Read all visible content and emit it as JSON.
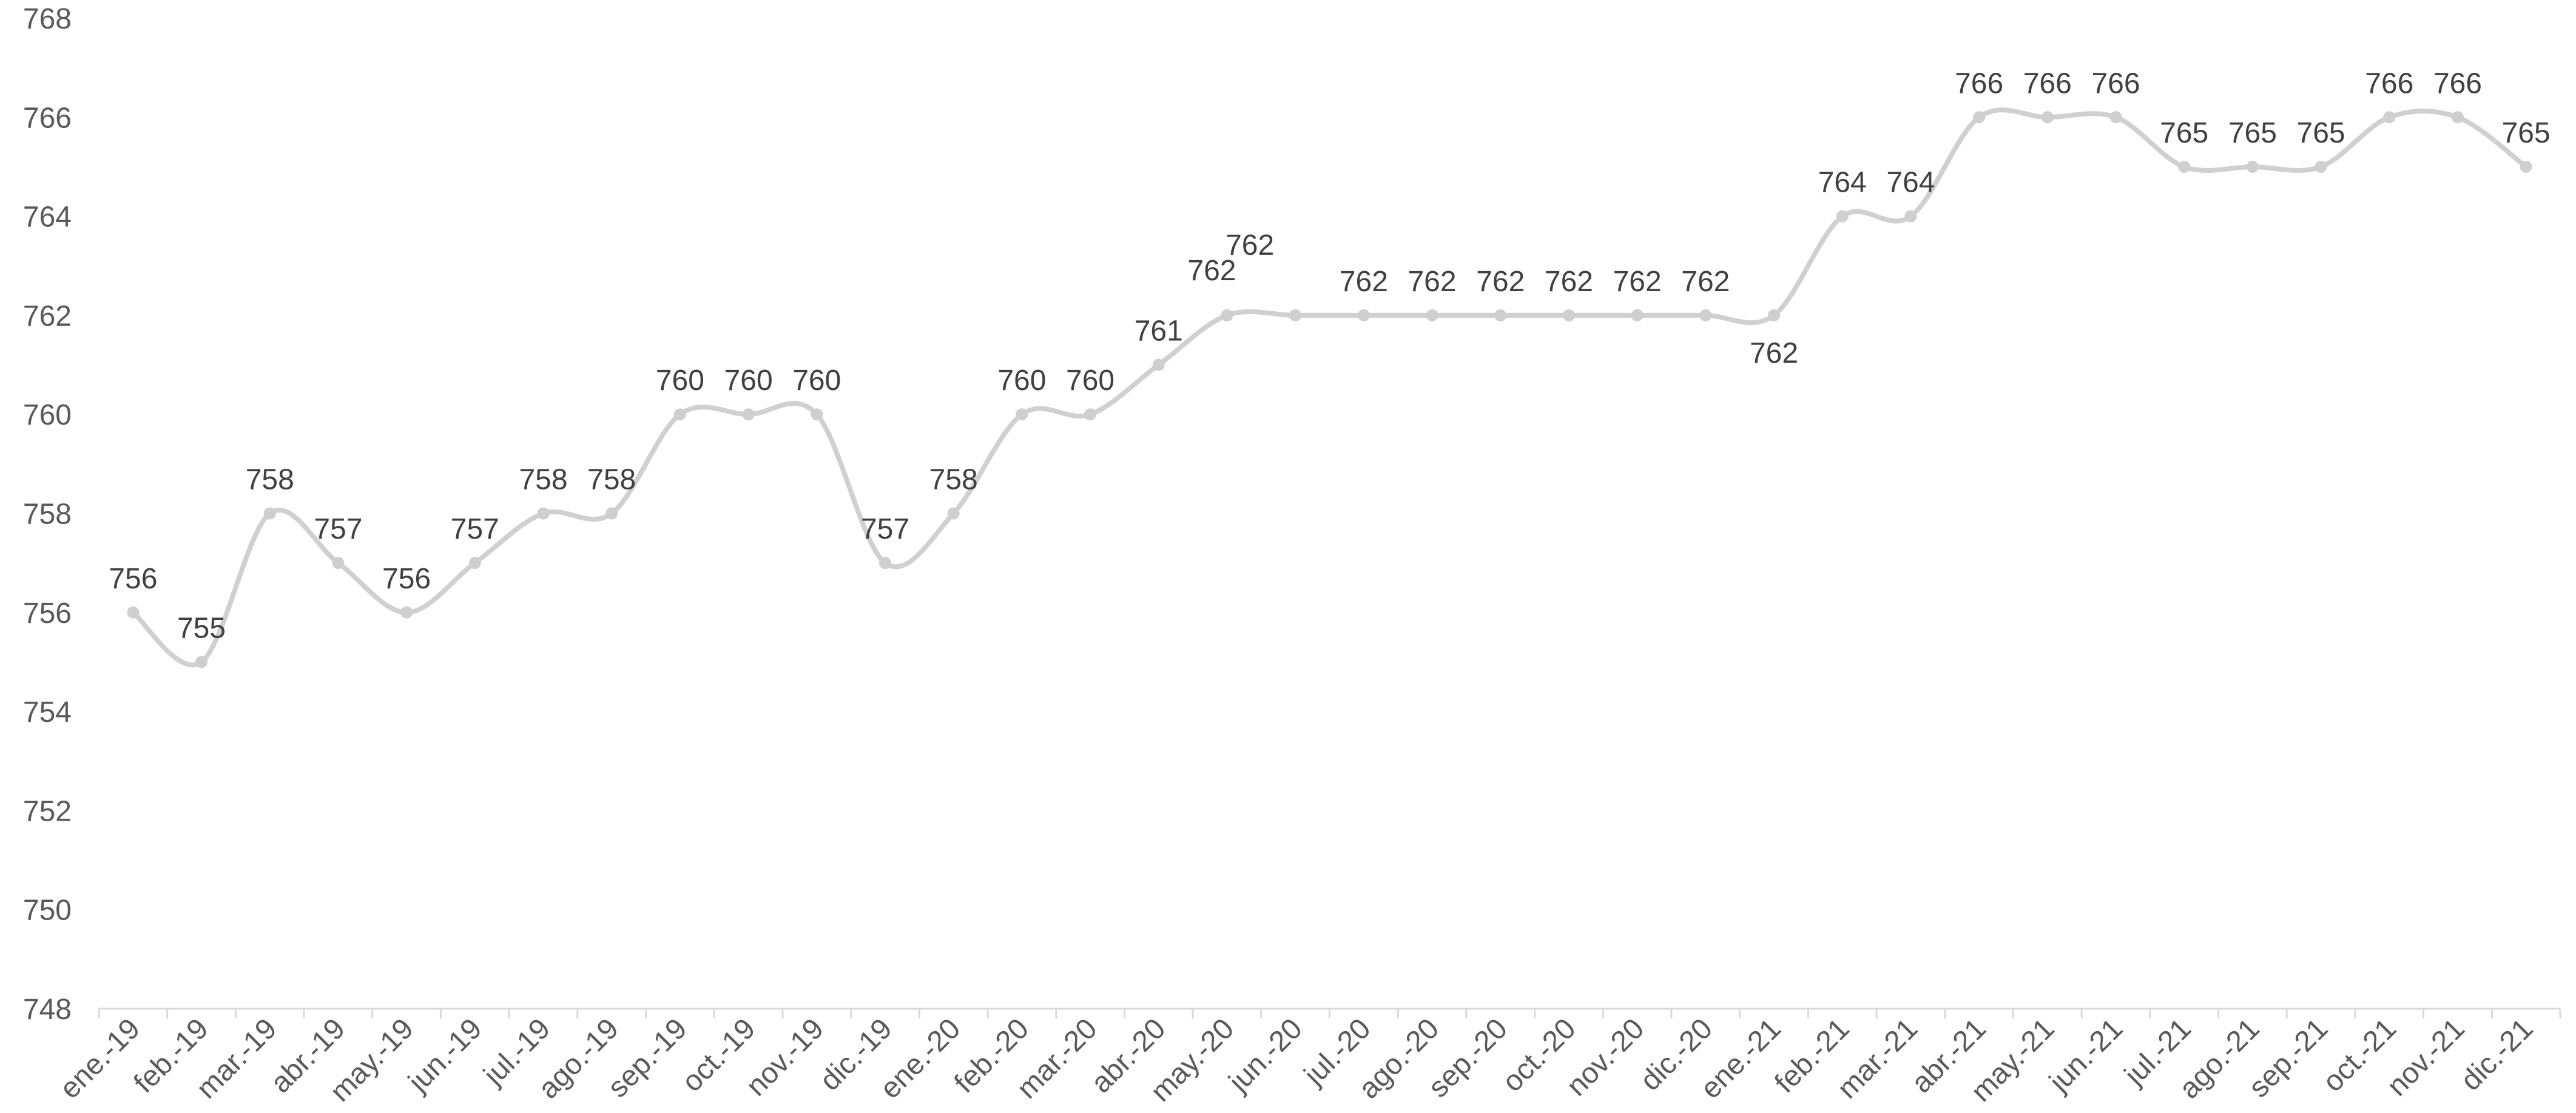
{
  "chart_data": {
    "type": "line",
    "title": "",
    "xlabel": "",
    "ylabel": "",
    "ylim": [
      748,
      768
    ],
    "ytick_step": 2,
    "grid": false,
    "legend": "none",
    "colors": {
      "line": "#d0d0d0",
      "point": "#cfcfcf",
      "label": "#404040",
      "axis": "#d9d9d9"
    },
    "categories": [
      "ene.-19",
      "feb.-19",
      "mar.-19",
      "abr.-19",
      "may.-19",
      "jun.-19",
      "jul.-19",
      "ago.-19",
      "sep.-19",
      "oct.-19",
      "nov.-19",
      "dic.-19",
      "ene.-20",
      "feb.-20",
      "mar.-20",
      "abr.-20",
      "may.-20",
      "jun.-20",
      "jul.-20",
      "ago.-20",
      "sep.-20",
      "oct.-20",
      "nov.-20",
      "dic.-20",
      "ene.-21",
      "feb.-21",
      "mar.-21",
      "abr.-21",
      "may.-21",
      "jun.-21",
      "jul.-21",
      "ago.-21",
      "sep.-21",
      "oct.-21",
      "nov.-21",
      "dic.-21"
    ],
    "series": [
      {
        "values": [
          756,
          755,
          758,
          757,
          756,
          757,
          758,
          758,
          760,
          760,
          760,
          757,
          758,
          760,
          760,
          761,
          762,
          762,
          762,
          762,
          762,
          762,
          762,
          762,
          762,
          764,
          764,
          766,
          766,
          766,
          765,
          765,
          765,
          766,
          766,
          765
        ]
      }
    ]
  }
}
